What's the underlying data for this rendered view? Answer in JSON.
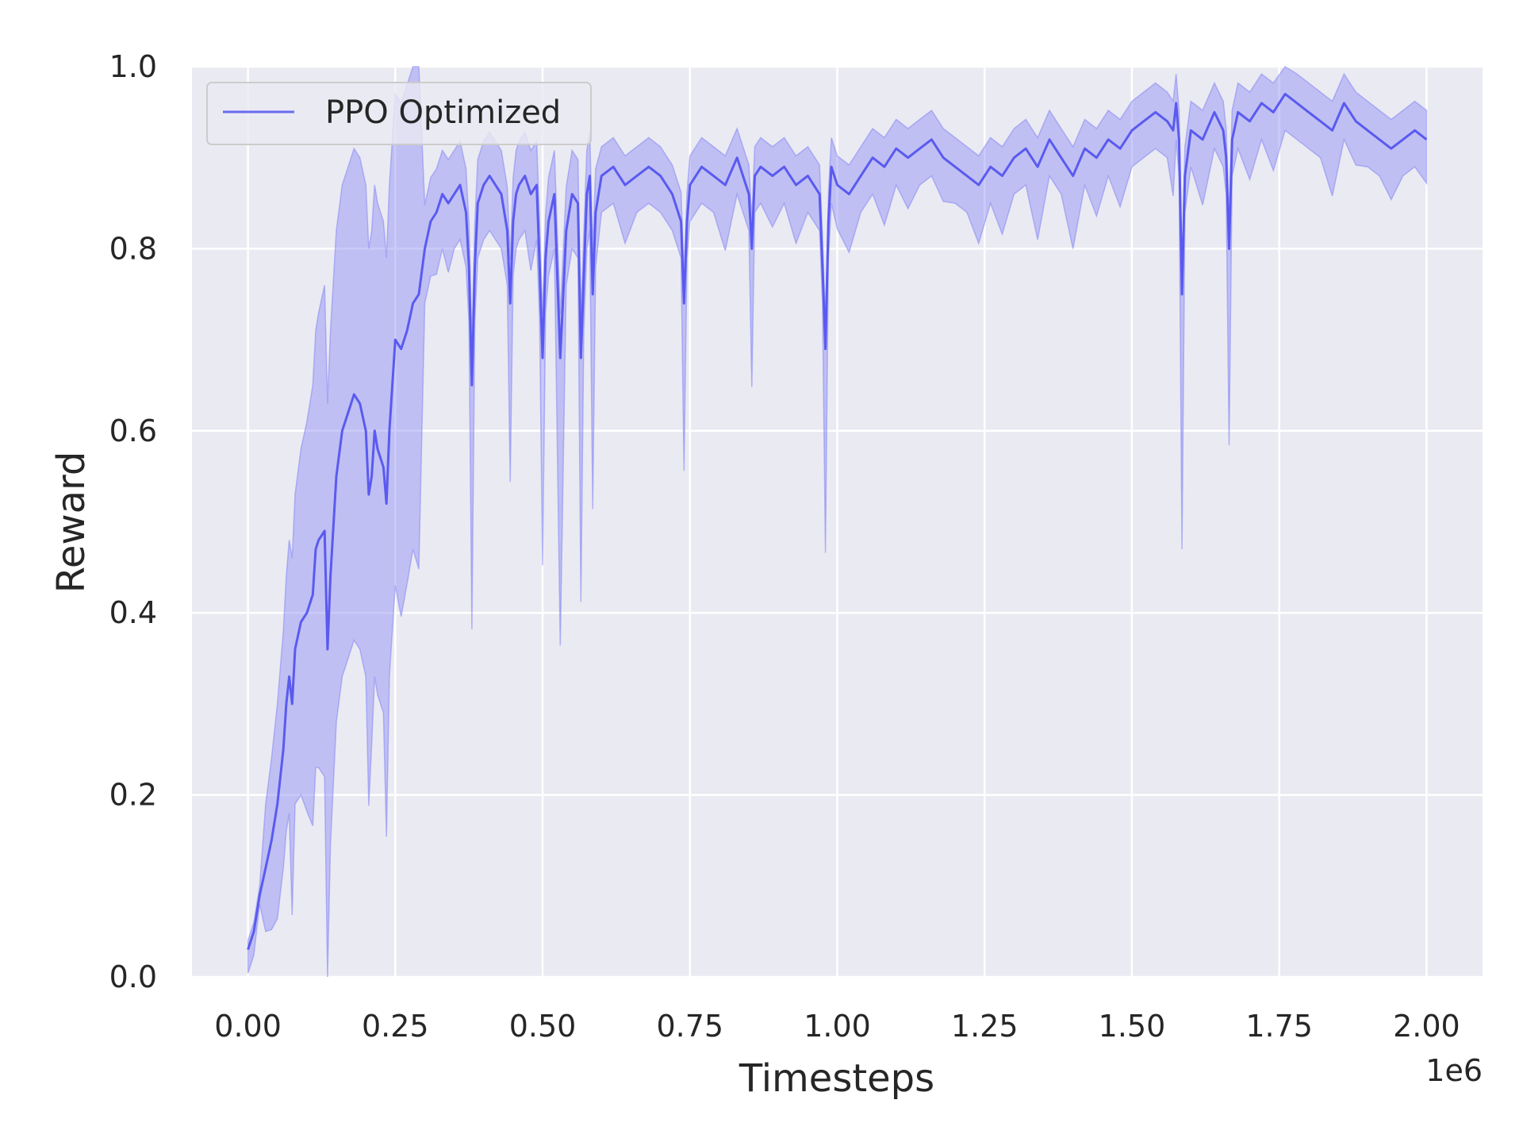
{
  "chart_data": {
    "type": "line",
    "title": "",
    "xlabel": "Timesteps",
    "ylabel": "Reward",
    "x_offset_label": "1e6",
    "xlim": [
      -0.095,
      2.095
    ],
    "ylim": [
      0.0,
      1.0
    ],
    "xticks": [
      0.0,
      0.25,
      0.5,
      0.75,
      1.0,
      1.25,
      1.5,
      1.75,
      2.0
    ],
    "xtick_labels": [
      "0.00",
      "0.25",
      "0.50",
      "0.75",
      "1.00",
      "1.25",
      "1.50",
      "1.75",
      "2.00"
    ],
    "yticks": [
      0.0,
      0.2,
      0.4,
      0.6,
      0.8,
      1.0
    ],
    "ytick_labels": [
      "0.0",
      "0.2",
      "0.4",
      "0.6",
      "0.8",
      "1.0"
    ],
    "grid": true,
    "legend": {
      "placement": "top-left",
      "entries": [
        "PPO Optimized"
      ]
    },
    "colors": {
      "background": "#eaeaf2",
      "grid": "#ffffff",
      "line": "#5a5af0",
      "band": "#8c8cf5"
    },
    "series": [
      {
        "name": "PPO Optimized",
        "x": [
          0.0,
          0.01,
          0.02,
          0.03,
          0.04,
          0.05,
          0.06,
          0.065,
          0.07,
          0.075,
          0.08,
          0.09,
          0.1,
          0.11,
          0.115,
          0.12,
          0.13,
          0.135,
          0.14,
          0.15,
          0.16,
          0.17,
          0.18,
          0.19,
          0.2,
          0.205,
          0.21,
          0.215,
          0.22,
          0.23,
          0.235,
          0.24,
          0.245,
          0.25,
          0.26,
          0.27,
          0.28,
          0.29,
          0.3,
          0.31,
          0.32,
          0.33,
          0.34,
          0.35,
          0.36,
          0.37,
          0.375,
          0.38,
          0.385,
          0.39,
          0.4,
          0.41,
          0.42,
          0.43,
          0.44,
          0.445,
          0.45,
          0.455,
          0.46,
          0.47,
          0.48,
          0.49,
          0.495,
          0.5,
          0.505,
          0.51,
          0.52,
          0.53,
          0.54,
          0.55,
          0.56,
          0.565,
          0.57,
          0.575,
          0.58,
          0.585,
          0.59,
          0.6,
          0.62,
          0.64,
          0.66,
          0.68,
          0.7,
          0.72,
          0.735,
          0.74,
          0.745,
          0.75,
          0.77,
          0.79,
          0.81,
          0.83,
          0.85,
          0.855,
          0.86,
          0.87,
          0.89,
          0.91,
          0.93,
          0.95,
          0.97,
          0.975,
          0.98,
          0.985,
          0.99,
          1.0,
          1.02,
          1.04,
          1.06,
          1.08,
          1.1,
          1.12,
          1.14,
          1.16,
          1.18,
          1.2,
          1.22,
          1.24,
          1.26,
          1.28,
          1.3,
          1.32,
          1.34,
          1.36,
          1.38,
          1.4,
          1.42,
          1.44,
          1.46,
          1.48,
          1.5,
          1.52,
          1.54,
          1.56,
          1.57,
          1.575,
          1.58,
          1.585,
          1.59,
          1.6,
          1.62,
          1.64,
          1.655,
          1.66,
          1.665,
          1.67,
          1.68,
          1.7,
          1.72,
          1.74,
          1.76,
          1.78,
          1.8,
          1.82,
          1.84,
          1.86,
          1.88,
          1.9,
          1.92,
          1.94,
          1.96,
          1.98,
          2.0
        ],
        "mean": [
          0.03,
          0.05,
          0.09,
          0.12,
          0.15,
          0.19,
          0.25,
          0.3,
          0.33,
          0.3,
          0.36,
          0.39,
          0.4,
          0.42,
          0.47,
          0.48,
          0.49,
          0.36,
          0.44,
          0.55,
          0.6,
          0.62,
          0.64,
          0.63,
          0.6,
          0.53,
          0.55,
          0.6,
          0.58,
          0.56,
          0.52,
          0.6,
          0.65,
          0.7,
          0.69,
          0.71,
          0.74,
          0.75,
          0.8,
          0.83,
          0.84,
          0.86,
          0.85,
          0.86,
          0.87,
          0.84,
          0.78,
          0.65,
          0.78,
          0.85,
          0.87,
          0.88,
          0.87,
          0.86,
          0.82,
          0.74,
          0.83,
          0.86,
          0.87,
          0.88,
          0.86,
          0.87,
          0.78,
          0.68,
          0.79,
          0.83,
          0.86,
          0.68,
          0.82,
          0.86,
          0.85,
          0.68,
          0.77,
          0.86,
          0.88,
          0.75,
          0.84,
          0.88,
          0.89,
          0.87,
          0.88,
          0.89,
          0.88,
          0.86,
          0.83,
          0.74,
          0.83,
          0.87,
          0.89,
          0.88,
          0.87,
          0.9,
          0.86,
          0.8,
          0.88,
          0.89,
          0.88,
          0.89,
          0.87,
          0.88,
          0.86,
          0.78,
          0.69,
          0.83,
          0.89,
          0.87,
          0.86,
          0.88,
          0.9,
          0.89,
          0.91,
          0.9,
          0.91,
          0.92,
          0.9,
          0.89,
          0.88,
          0.87,
          0.89,
          0.88,
          0.9,
          0.91,
          0.89,
          0.92,
          0.9,
          0.88,
          0.91,
          0.9,
          0.92,
          0.91,
          0.93,
          0.94,
          0.95,
          0.94,
          0.93,
          0.96,
          0.92,
          0.75,
          0.88,
          0.93,
          0.92,
          0.95,
          0.93,
          0.9,
          0.8,
          0.92,
          0.95,
          0.94,
          0.96,
          0.95,
          0.97,
          0.96,
          0.95,
          0.94,
          0.93,
          0.96,
          0.94,
          0.93,
          0.92,
          0.91,
          0.92,
          0.93,
          0.92
        ]
      }
    ]
  }
}
